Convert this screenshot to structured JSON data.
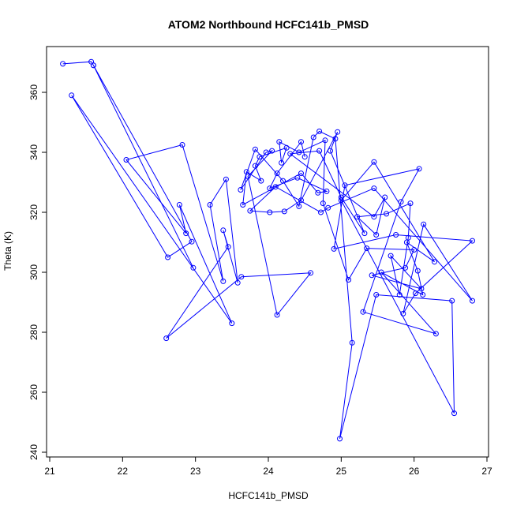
{
  "chart_data": {
    "type": "scatter",
    "title": "ATOM2 Northbound HCFC141b_PMSD",
    "xlabel": "HCFC141b_PMSD",
    "ylabel": "Theta (K)",
    "xlim": [
      21,
      27
    ],
    "ylim": [
      240,
      372
    ],
    "xticks": [
      "21",
      "22",
      "23",
      "24",
      "25",
      "26",
      "27"
    ],
    "yticks": [
      "240",
      "260",
      "280",
      "300",
      "320",
      "340",
      "360"
    ],
    "grid": false,
    "legend": "none",
    "series": [
      {
        "color": "#0000ff",
        "marker": "open-circle",
        "line": true,
        "points": [
          [
            21.18,
            369.5
          ],
          [
            21.57,
            370.2
          ],
          [
            21.6,
            369.0
          ],
          [
            22.97,
            301.5
          ],
          [
            21.6,
            369.0
          ],
          [
            22.95,
            310.2
          ],
          [
            22.62,
            305.0
          ],
          [
            21.3,
            359.0
          ],
          [
            23.5,
            283.0
          ],
          [
            22.78,
            322.5
          ],
          [
            22.87,
            313.0
          ],
          [
            22.05,
            337.5
          ],
          [
            22.82,
            342.5
          ],
          [
            23.38,
            297.0
          ],
          [
            23.2,
            322.5
          ],
          [
            23.42,
            331.0
          ],
          [
            23.58,
            296.5
          ],
          [
            23.38,
            314.0
          ],
          [
            23.45,
            308.5
          ],
          [
            22.6,
            278.0
          ],
          [
            23.63,
            298.5
          ],
          [
            24.58,
            299.8
          ],
          [
            24.12,
            285.8
          ],
          [
            23.72,
            332.0
          ],
          [
            24.05,
            340.5
          ],
          [
            23.97,
            340.0
          ],
          [
            23.62,
            327.5
          ],
          [
            23.82,
            341.0
          ],
          [
            24.2,
            330.5
          ],
          [
            24.42,
            322.0
          ],
          [
            24.62,
            345.0
          ],
          [
            24.7,
            347.0
          ],
          [
            24.92,
            344.5
          ],
          [
            25.15,
            276.5
          ],
          [
            24.98,
            244.5
          ],
          [
            25.48,
            292.5
          ],
          [
            26.52,
            290.5
          ],
          [
            26.55,
            253.0
          ],
          [
            25.0,
            324.0
          ],
          [
            25.45,
            336.8
          ],
          [
            26.28,
            303.5
          ],
          [
            25.9,
            310.0
          ],
          [
            26.05,
            300.5
          ],
          [
            26.12,
            292.5
          ],
          [
            25.55,
            300.0
          ],
          [
            26.3,
            279.5
          ],
          [
            25.3,
            286.8
          ],
          [
            25.82,
            323.5
          ],
          [
            26.07,
            334.5
          ],
          [
            25.05,
            329.0
          ],
          [
            24.9,
            307.8
          ],
          [
            25.75,
            312.5
          ],
          [
            26.8,
            310.5
          ],
          [
            26.02,
            293.0
          ],
          [
            25.85,
            286.2
          ],
          [
            26.13,
            316.0
          ],
          [
            26.8,
            290.5
          ],
          [
            25.45,
            328.0
          ],
          [
            24.82,
            321.5
          ],
          [
            24.72,
            320.0
          ],
          [
            24.1,
            328.5
          ],
          [
            23.75,
            320.5
          ],
          [
            24.02,
            320.0
          ],
          [
            24.22,
            320.3
          ],
          [
            24.45,
            324.0
          ],
          [
            24.95,
            346.8
          ],
          [
            24.85,
            340.5
          ],
          [
            25.32,
            313.0
          ],
          [
            25.0,
            325.0
          ],
          [
            24.7,
            340.5
          ],
          [
            24.3,
            339.5
          ],
          [
            25.45,
            318.5
          ],
          [
            25.6,
            325.0
          ],
          [
            25.48,
            312.5
          ],
          [
            25.22,
            318.5
          ],
          [
            25.62,
            319.5
          ],
          [
            25.95,
            323.0
          ],
          [
            25.92,
            311.5
          ],
          [
            25.8,
            292.5
          ],
          [
            25.68,
            305.5
          ],
          [
            26.1,
            294.5
          ],
          [
            25.42,
            299.0
          ],
          [
            25.88,
            301.5
          ],
          [
            26.0,
            307.5
          ],
          [
            25.35,
            308.0
          ],
          [
            25.1,
            297.5
          ],
          [
            24.75,
            323.0
          ],
          [
            24.78,
            344.0
          ],
          [
            24.42,
            340.0
          ],
          [
            24.15,
            343.5
          ],
          [
            24.18,
            336.5
          ],
          [
            24.25,
            341.5
          ],
          [
            23.88,
            338.5
          ],
          [
            23.82,
            335.5
          ],
          [
            23.9,
            330.5
          ],
          [
            23.7,
            333.5
          ],
          [
            23.65,
            322.5
          ],
          [
            24.45,
            333.0
          ],
          [
            24.68,
            326.5
          ],
          [
            24.8,
            327.0
          ],
          [
            24.4,
            331.5
          ],
          [
            24.02,
            328.0
          ],
          [
            24.12,
            333.0
          ],
          [
            24.45,
            343.5
          ],
          [
            24.5,
            338.5
          ]
        ]
      }
    ]
  }
}
